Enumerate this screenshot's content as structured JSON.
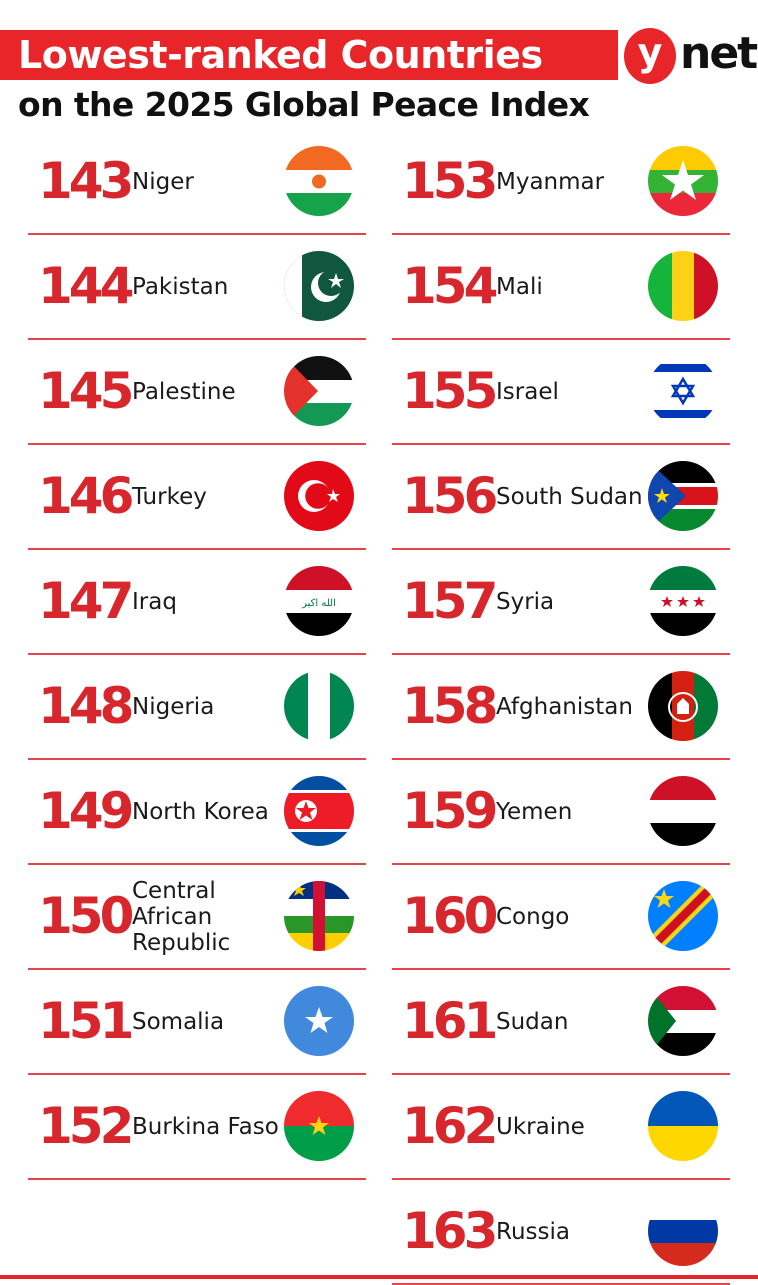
{
  "header": {
    "title_line1": "Lowest-ranked Countries",
    "title_line2": "on the 2025 Global Peace Index",
    "logo_y": "y",
    "logo_net": "net"
  },
  "colors": {
    "accent": "#e8262a",
    "rank": "#d7262c"
  },
  "left_column": [
    {
      "rank": "143",
      "country": "Niger",
      "flag": "niger-flag-icon"
    },
    {
      "rank": "144",
      "country": "Pakistan",
      "flag": "pakistan-flag-icon"
    },
    {
      "rank": "145",
      "country": "Palestine",
      "flag": "palestine-flag-icon"
    },
    {
      "rank": "146",
      "country": "Turkey",
      "flag": "turkey-flag-icon"
    },
    {
      "rank": "147",
      "country": "Iraq",
      "flag": "iraq-flag-icon",
      "flag_text": "الله اكبر"
    },
    {
      "rank": "148",
      "country": "Nigeria",
      "flag": "nigeria-flag-icon"
    },
    {
      "rank": "149",
      "country": "North Korea",
      "flag": "north-korea-flag-icon"
    },
    {
      "rank": "150",
      "country": "Central African Republic",
      "flag": "central-african-republic-flag-icon"
    },
    {
      "rank": "151",
      "country": "Somalia",
      "flag": "somalia-flag-icon"
    },
    {
      "rank": "152",
      "country": "Burkina Faso",
      "flag": "burkina-faso-flag-icon"
    }
  ],
  "right_column": [
    {
      "rank": "153",
      "country": "Myanmar",
      "flag": "myanmar-flag-icon"
    },
    {
      "rank": "154",
      "country": "Mali",
      "flag": "mali-flag-icon"
    },
    {
      "rank": "155",
      "country": "Israel",
      "flag": "israel-flag-icon"
    },
    {
      "rank": "156",
      "country": "South Sudan",
      "flag": "south-sudan-flag-icon"
    },
    {
      "rank": "157",
      "country": "Syria",
      "flag": "syria-flag-icon"
    },
    {
      "rank": "158",
      "country": "Afghanistan",
      "flag": "afghanistan-flag-icon"
    },
    {
      "rank": "159",
      "country": "Yemen",
      "flag": "yemen-flag-icon"
    },
    {
      "rank": "160",
      "country": "Congo",
      "flag": "congo-flag-icon"
    },
    {
      "rank": "161",
      "country": "Sudan",
      "flag": "sudan-flag-icon"
    },
    {
      "rank": "162",
      "country": "Ukraine",
      "flag": "ukraine-flag-icon"
    },
    {
      "rank": "163",
      "country": "Russia",
      "flag": "russia-flag-icon"
    }
  ]
}
